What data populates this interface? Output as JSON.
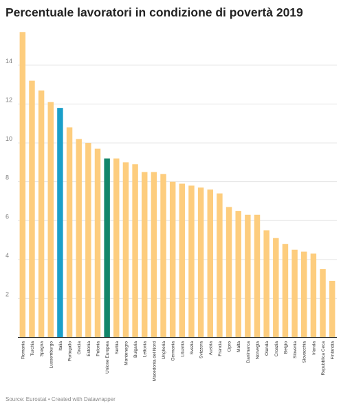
{
  "title": "Percentuale lavoratori in condizione di povertà 2019",
  "footer": {
    "source_label": "Source: Eurostat",
    "separator": " • ",
    "credit": "Created with Datawrapper"
  },
  "colors": {
    "default_bar": "#fdcd7e",
    "highlight_italia": "#1a9fc9",
    "highlight_ue": "#13866a",
    "grid": "#e3e3e3",
    "axis_text": "#808080",
    "baseline": "#333333"
  },
  "chart_data": {
    "type": "bar",
    "title": "Percentuale lavoratori in condizione di povertà 2019",
    "xlabel": "",
    "ylabel": "",
    "ylim": [
      0,
      15.8
    ],
    "yticks": [
      2,
      4,
      6,
      8,
      10,
      12,
      14
    ],
    "grid": true,
    "categories": [
      "Romania",
      "Turchia",
      "Spagna",
      "Lussemburgo",
      "Italia",
      "Portogallo",
      "Grecia",
      "Estonia",
      "Polonia",
      "Unione Europea",
      "Serbia",
      "Montenegro",
      "Bulgaria",
      "Lettonia",
      "Macedonia del Nord",
      "Ungheria",
      "Germania",
      "Lituania",
      "Svezia",
      "Svizzera",
      "Austria",
      "Francia",
      "Cipro",
      "Malta",
      "Danimarca",
      "Norvegia",
      "Olanda",
      "Croazia",
      "Belgio",
      "Slovenia",
      "Slovacchia",
      "Irlanda",
      "Repubblica Ceca",
      "Finlandia"
    ],
    "values": [
      15.7,
      13.2,
      12.7,
      12.1,
      11.8,
      10.8,
      10.2,
      10.0,
      9.7,
      9.2,
      9.2,
      9.0,
      8.9,
      8.5,
      8.5,
      8.4,
      8.0,
      7.9,
      7.8,
      7.7,
      7.6,
      7.4,
      6.7,
      6.5,
      6.3,
      6.3,
      5.5,
      5.1,
      4.8,
      4.5,
      4.4,
      4.3,
      3.5,
      2.9
    ],
    "highlights": {
      "Italia": "#1a9fc9",
      "Unione Europea": "#13866a"
    }
  }
}
